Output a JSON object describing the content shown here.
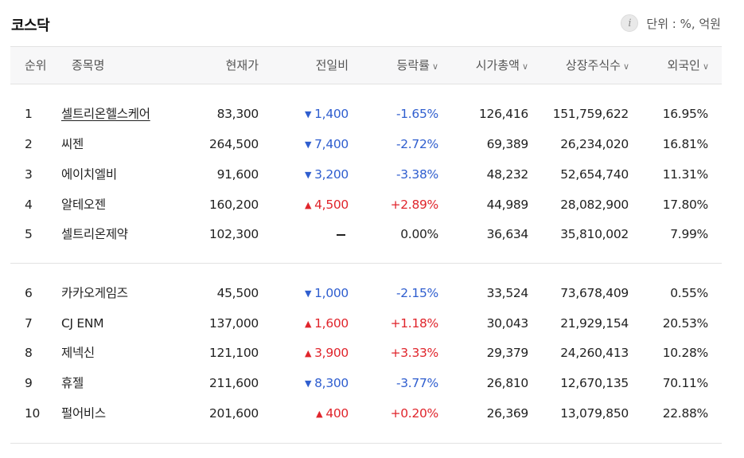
{
  "title": "코스닥",
  "unit_label": "단위 : %, 억원",
  "info_icon": "info-icon",
  "columns": [
    {
      "label": "순위"
    },
    {
      "label": "종목명"
    },
    {
      "label": "현재가"
    },
    {
      "label": "전일비"
    },
    {
      "label": "등락률",
      "sortable": true
    },
    {
      "label": "시가총액",
      "sortable": true
    },
    {
      "label": "상장주식수",
      "sortable": true
    },
    {
      "label": "외국인",
      "sortable": true
    }
  ],
  "colors": {
    "up": "#e0252c",
    "down": "#2f5ecf"
  },
  "rows": [
    {
      "rank": "1",
      "name": "셀트리온헬스케어",
      "price": "83,300",
      "change": "1,400",
      "dir": "down",
      "rate": "-1.65%",
      "market_cap": "126,416",
      "shares": "151,759,622",
      "foreign": "16.95%"
    },
    {
      "rank": "2",
      "name": "씨젠",
      "price": "264,500",
      "change": "7,400",
      "dir": "down",
      "rate": "-2.72%",
      "market_cap": "69,389",
      "shares": "26,234,020",
      "foreign": "16.81%"
    },
    {
      "rank": "3",
      "name": "에이치엘비",
      "price": "91,600",
      "change": "3,200",
      "dir": "down",
      "rate": "-3.38%",
      "market_cap": "48,232",
      "shares": "52,654,740",
      "foreign": "11.31%"
    },
    {
      "rank": "4",
      "name": "알테오젠",
      "price": "160,200",
      "change": "4,500",
      "dir": "up",
      "rate": "+2.89%",
      "market_cap": "44,989",
      "shares": "28,082,900",
      "foreign": "17.80%"
    },
    {
      "rank": "5",
      "name": "셀트리온제약",
      "price": "102,300",
      "change": "",
      "dir": "flat",
      "rate": "0.00%",
      "market_cap": "36,634",
      "shares": "35,810,002",
      "foreign": "7.99%"
    },
    {
      "rank": "6",
      "name": "카카오게임즈",
      "price": "45,500",
      "change": "1,000",
      "dir": "down",
      "rate": "-2.15%",
      "market_cap": "33,524",
      "shares": "73,678,409",
      "foreign": "0.55%"
    },
    {
      "rank": "7",
      "name": "CJ ENM",
      "price": "137,000",
      "change": "1,600",
      "dir": "up",
      "rate": "+1.18%",
      "market_cap": "30,043",
      "shares": "21,929,154",
      "foreign": "20.53%"
    },
    {
      "rank": "8",
      "name": "제넥신",
      "price": "121,100",
      "change": "3,900",
      "dir": "up",
      "rate": "+3.33%",
      "market_cap": "29,379",
      "shares": "24,260,413",
      "foreign": "10.28%"
    },
    {
      "rank": "9",
      "name": "휴젤",
      "price": "211,600",
      "change": "8,300",
      "dir": "down",
      "rate": "-3.77%",
      "market_cap": "26,810",
      "shares": "12,670,135",
      "foreign": "70.11%"
    },
    {
      "rank": "10",
      "name": "펄어비스",
      "price": "201,600",
      "change": "400",
      "dir": "up",
      "rate": "+0.20%",
      "market_cap": "26,369",
      "shares": "13,079,850",
      "foreign": "22.88%"
    }
  ]
}
